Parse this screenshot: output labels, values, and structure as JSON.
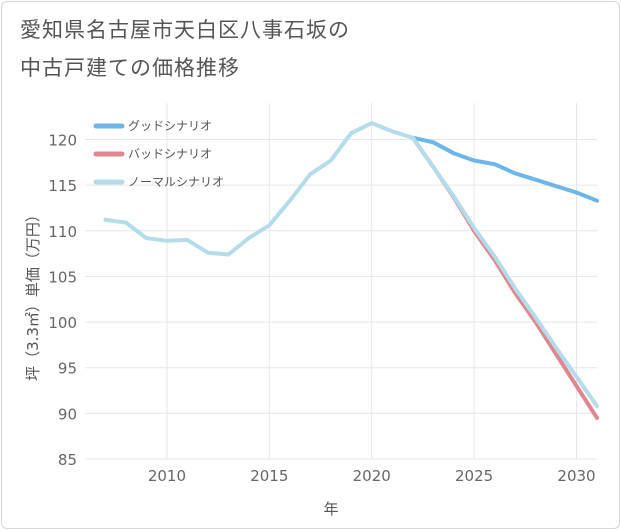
{
  "chart_data": {
    "type": "line",
    "title_lines": [
      "愛知県名古屋市天白区八事石坂の",
      "中古戸建ての価格推移"
    ],
    "xlabel": "年",
    "ylabel": "坪（3.3㎡）単価（万円）",
    "xlim": [
      2006,
      2031
    ],
    "ylim": [
      85,
      124
    ],
    "x_ticks": [
      2010,
      2015,
      2020,
      2025,
      2030
    ],
    "y_ticks": [
      85,
      90,
      95,
      100,
      105,
      110,
      115,
      120
    ],
    "grid": true,
    "legend_position": "top-left",
    "series": [
      {
        "name": "グッドシナリオ",
        "color": "#6cb6ea",
        "x": [
          2022,
          2023,
          2024,
          2025,
          2026,
          2027,
          2028,
          2029,
          2030,
          2031
        ],
        "values": [
          120.2,
          119.7,
          118.5,
          117.7,
          117.3,
          116.3,
          115.6,
          114.9,
          114.2,
          113.3
        ]
      },
      {
        "name": "バッドシナリオ",
        "color": "#e0868e",
        "x": [
          2022,
          2023,
          2024,
          2025,
          2026,
          2027,
          2028,
          2029,
          2030,
          2031
        ],
        "values": [
          120.2,
          117.0,
          113.7,
          110.0,
          106.8,
          103.2,
          100.0,
          96.5,
          93.0,
          89.5
        ]
      },
      {
        "name": "ノーマルシナリオ",
        "color": "#b4dcea",
        "x": [
          2007,
          2008,
          2009,
          2010,
          2011,
          2012,
          2013,
          2014,
          2015,
          2016,
          2017,
          2018,
          2019,
          2020,
          2021,
          2022,
          2023,
          2024,
          2025,
          2026,
          2027,
          2028,
          2029,
          2030,
          2031
        ],
        "values": [
          111.2,
          110.9,
          109.2,
          108.9,
          109.0,
          107.6,
          107.4,
          109.2,
          110.6,
          113.3,
          116.2,
          117.7,
          120.7,
          121.8,
          120.9,
          120.2,
          117.0,
          113.8,
          110.3,
          107.2,
          103.7,
          100.5,
          97.2,
          94.0,
          90.8
        ]
      }
    ]
  }
}
